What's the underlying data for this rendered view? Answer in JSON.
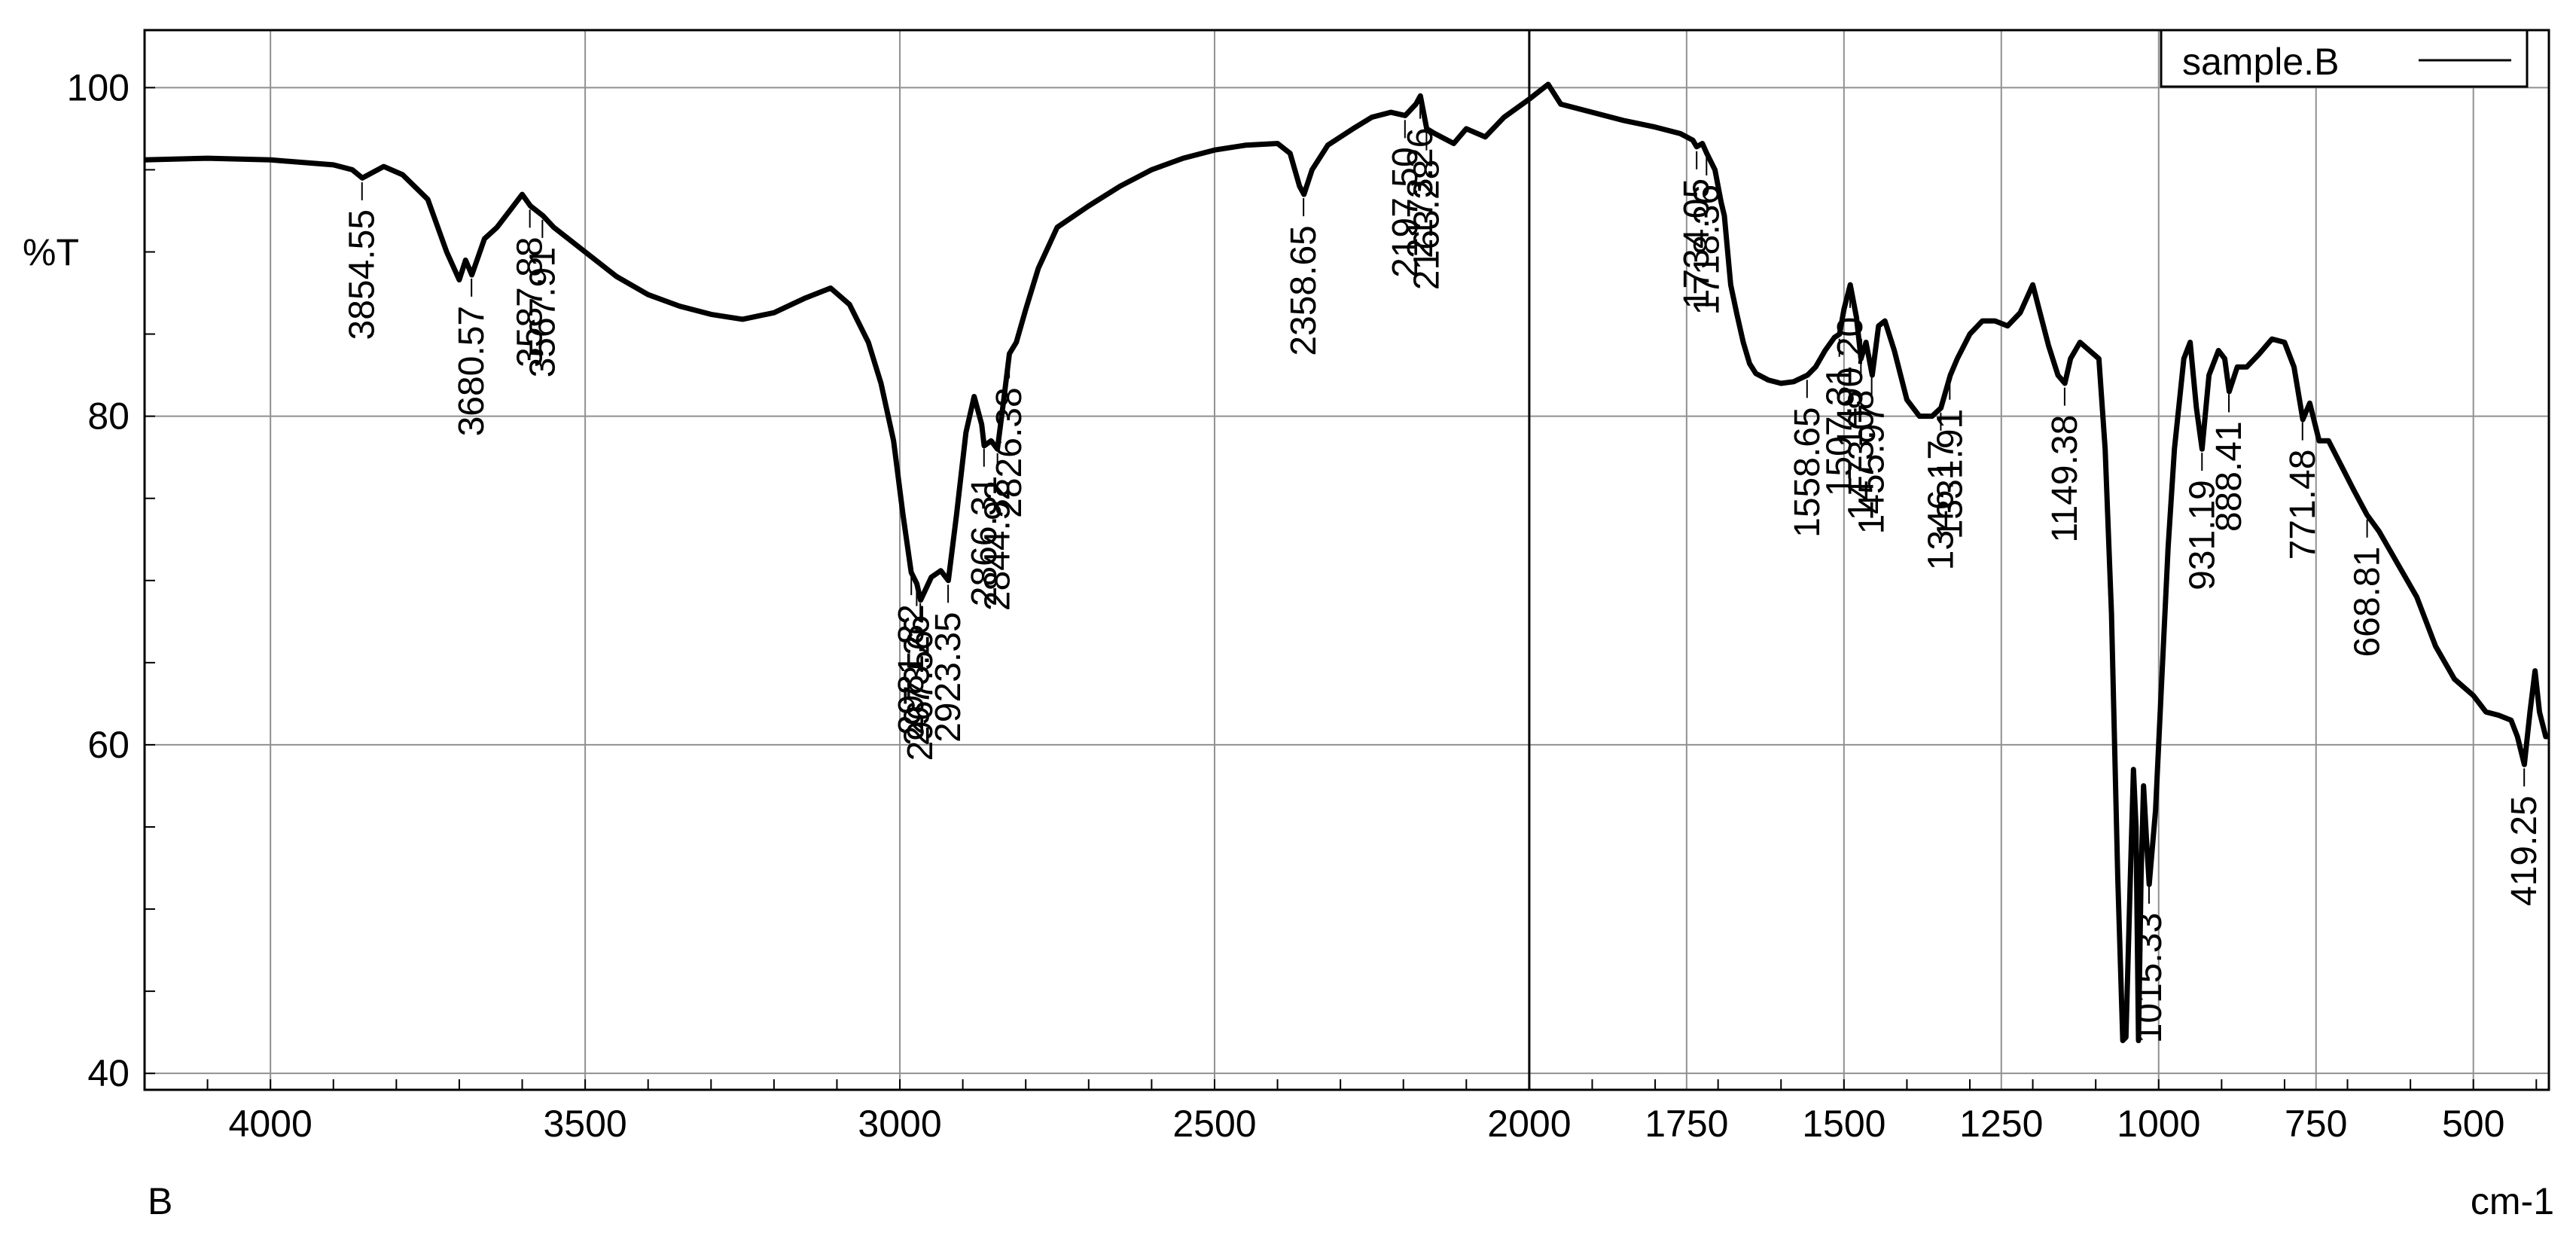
{
  "chart_data": {
    "type": "line",
    "x_direction": "descending",
    "xlim": [
      4200,
      380
    ],
    "ylim": [
      39,
      103.5
    ],
    "grid": true,
    "legend_position": "top-right",
    "x_ticks": [
      4000,
      3500,
      3000,
      2500,
      2000,
      1750,
      1500,
      1250,
      1000,
      750,
      500
    ],
    "x_tick_labels": [
      "4000",
      "3500",
      "3000",
      "2500",
      "2000",
      "1750",
      "1500",
      "1250",
      "1000",
      "750",
      "500"
    ],
    "y_ticks": [
      40,
      60,
      80,
      100
    ],
    "y_tick_labels": [
      "40",
      "60",
      "80",
      "100"
    ],
    "ylabel": "%T",
    "xlabel": "cm-1",
    "corner_label": "B",
    "colors": {
      "line": "#000000",
      "grid": "#909090",
      "axis": "#000000"
    },
    "series": [
      {
        "name": "sample.B",
        "points": [
          [
            4200,
            95.6
          ],
          [
            4100,
            95.7
          ],
          [
            4000,
            95.6
          ],
          [
            3900,
            95.3
          ],
          [
            3870,
            95.0
          ],
          [
            3854,
            94.5
          ],
          [
            3820,
            95.2
          ],
          [
            3790,
            94.7
          ],
          [
            3750,
            93.2
          ],
          [
            3720,
            90.0
          ],
          [
            3700,
            88.3
          ],
          [
            3690,
            89.5
          ],
          [
            3680,
            88.6
          ],
          [
            3660,
            90.8
          ],
          [
            3640,
            91.5
          ],
          [
            3620,
            92.5
          ],
          [
            3600,
            93.5
          ],
          [
            3587,
            92.8
          ],
          [
            3567,
            92.2
          ],
          [
            3550,
            91.5
          ],
          [
            3500,
            90.0
          ],
          [
            3450,
            88.5
          ],
          [
            3400,
            87.4
          ],
          [
            3350,
            86.7
          ],
          [
            3300,
            86.2
          ],
          [
            3250,
            85.9
          ],
          [
            3200,
            86.3
          ],
          [
            3150,
            87.2
          ],
          [
            3110,
            87.8
          ],
          [
            3080,
            86.8
          ],
          [
            3050,
            84.5
          ],
          [
            3030,
            82.0
          ],
          [
            3010,
            78.5
          ],
          [
            2995,
            74.0
          ],
          [
            2982,
            70.5
          ],
          [
            2973,
            69.8
          ],
          [
            2967,
            68.8
          ],
          [
            2950,
            70.2
          ],
          [
            2935,
            70.6
          ],
          [
            2923,
            70.0
          ],
          [
            2910,
            74.0
          ],
          [
            2895,
            79.0
          ],
          [
            2882,
            81.2
          ],
          [
            2870,
            79.5
          ],
          [
            2866,
            78.2
          ],
          [
            2855,
            78.5
          ],
          [
            2845,
            78.0
          ],
          [
            2835,
            81.0
          ],
          [
            2826,
            83.8
          ],
          [
            2815,
            84.5
          ],
          [
            2800,
            86.5
          ],
          [
            2780,
            89.0
          ],
          [
            2750,
            91.5
          ],
          [
            2700,
            92.8
          ],
          [
            2650,
            94.0
          ],
          [
            2600,
            95.0
          ],
          [
            2550,
            95.7
          ],
          [
            2500,
            96.2
          ],
          [
            2450,
            96.5
          ],
          [
            2400,
            96.6
          ],
          [
            2380,
            96.0
          ],
          [
            2365,
            94.0
          ],
          [
            2358,
            93.5
          ],
          [
            2345,
            95.0
          ],
          [
            2320,
            96.5
          ],
          [
            2280,
            97.5
          ],
          [
            2250,
            98.2
          ],
          [
            2220,
            98.5
          ],
          [
            2197,
            98.3
          ],
          [
            2180,
            99.0
          ],
          [
            2173,
            99.5
          ],
          [
            2163,
            97.5
          ],
          [
            2150,
            97.2
          ],
          [
            2120,
            96.6
          ],
          [
            2100,
            97.5
          ],
          [
            2070,
            97.0
          ],
          [
            2040,
            98.2
          ],
          [
            2000,
            99.3
          ],
          [
            1970,
            100.2
          ],
          [
            1950,
            99.0
          ],
          [
            1900,
            98.5
          ],
          [
            1850,
            98.0
          ],
          [
            1800,
            97.6
          ],
          [
            1760,
            97.2
          ],
          [
            1740,
            96.8
          ],
          [
            1734,
            96.4
          ],
          [
            1725,
            96.6
          ],
          [
            1718,
            96.0
          ],
          [
            1705,
            95.0
          ],
          [
            1695,
            93.0
          ],
          [
            1690,
            92.2
          ],
          [
            1680,
            88.0
          ],
          [
            1670,
            86.2
          ],
          [
            1660,
            84.5
          ],
          [
            1650,
            83.2
          ],
          [
            1640,
            82.6
          ],
          [
            1620,
            82.2
          ],
          [
            1600,
            82.0
          ],
          [
            1580,
            82.1
          ],
          [
            1558,
            82.5
          ],
          [
            1545,
            83.0
          ],
          [
            1530,
            84.0
          ],
          [
            1515,
            84.8
          ],
          [
            1507,
            85.0
          ],
          [
            1500,
            86.5
          ],
          [
            1490,
            88.0
          ],
          [
            1480,
            86.0
          ],
          [
            1473,
            83.5
          ],
          [
            1465,
            84.5
          ],
          [
            1455,
            82.5
          ],
          [
            1445,
            85.5
          ],
          [
            1435,
            85.8
          ],
          [
            1420,
            84.0
          ],
          [
            1400,
            81.0
          ],
          [
            1380,
            80.0
          ],
          [
            1360,
            80.0
          ],
          [
            1346,
            80.5
          ],
          [
            1331,
            82.5
          ],
          [
            1320,
            83.5
          ],
          [
            1300,
            85.0
          ],
          [
            1280,
            85.8
          ],
          [
            1260,
            85.8
          ],
          [
            1240,
            85.5
          ],
          [
            1220,
            86.3
          ],
          [
            1200,
            88.0
          ],
          [
            1190,
            86.5
          ],
          [
            1175,
            84.3
          ],
          [
            1160,
            82.5
          ],
          [
            1149,
            82.0
          ],
          [
            1140,
            83.5
          ],
          [
            1125,
            84.5
          ],
          [
            1110,
            84.0
          ],
          [
            1095,
            83.5
          ],
          [
            1085,
            78.0
          ],
          [
            1075,
            68.0
          ],
          [
            1065,
            52.0
          ],
          [
            1057,
            42.0
          ],
          [
            1052,
            42.2
          ],
          [
            1045,
            52.0
          ],
          [
            1040,
            58.5
          ],
          [
            1036,
            55.0
          ],
          [
            1032,
            42.0
          ],
          [
            1028,
            52.0
          ],
          [
            1024,
            57.5
          ],
          [
            1019,
            54.0
          ],
          [
            1015,
            51.5
          ],
          [
            1005,
            56.0
          ],
          [
            995,
            64.0
          ],
          [
            985,
            72.0
          ],
          [
            975,
            78.0
          ],
          [
            960,
            83.5
          ],
          [
            950,
            84.5
          ],
          [
            940,
            80.5
          ],
          [
            931,
            78.0
          ],
          [
            920,
            82.5
          ],
          [
            905,
            84.0
          ],
          [
            895,
            83.5
          ],
          [
            888,
            81.5
          ],
          [
            875,
            83.0
          ],
          [
            860,
            83.0
          ],
          [
            840,
            83.8
          ],
          [
            820,
            84.7
          ],
          [
            800,
            84.5
          ],
          [
            785,
            83.0
          ],
          [
            771,
            79.8
          ],
          [
            760,
            80.8
          ],
          [
            745,
            78.5
          ],
          [
            730,
            78.5
          ],
          [
            710,
            77.0
          ],
          [
            690,
            75.5
          ],
          [
            669,
            74.0
          ],
          [
            650,
            73.0
          ],
          [
            620,
            71.0
          ],
          [
            590,
            69.0
          ],
          [
            560,
            66.0
          ],
          [
            530,
            64.0
          ],
          [
            500,
            63.0
          ],
          [
            480,
            62.0
          ],
          [
            460,
            61.8
          ],
          [
            440,
            61.5
          ],
          [
            430,
            60.5
          ],
          [
            419,
            58.8
          ],
          [
            410,
            62.0
          ],
          [
            402,
            64.5
          ],
          [
            395,
            62.0
          ],
          [
            385,
            60.5
          ],
          [
            380,
            60.5
          ]
        ]
      }
    ],
    "peak_labels": [
      "3854.55",
      "3680.57",
      "3587.88",
      "3567.91",
      "2981.82",
      "2973.26",
      "2967.56",
      "2923.35",
      "2866.31",
      "2844.92",
      "2826.38",
      "2358.65",
      "2197.50",
      "2173.26",
      "2163.28",
      "1734.05",
      "1718.36",
      "1558.65",
      "1507.31",
      "1490.20",
      "1473.08",
      "1455.97",
      "1346.17",
      "1331.91",
      "1149.38",
      "1015.33",
      "931.19",
      "888.41",
      "771.48",
      "668.81",
      "419.25"
    ],
    "peaks": [
      3854.55,
      3680.57,
      3587.88,
      3567.91,
      2981.82,
      2973.26,
      2967.56,
      2923.35,
      2866.31,
      2844.92,
      2826.38,
      2358.65,
      2197.5,
      2173.26,
      2163.28,
      1734.05,
      1718.36,
      1558.65,
      1507.31,
      1490.2,
      1473.08,
      1455.97,
      1346.17,
      1331.91,
      1149.38,
      1015.33,
      931.19,
      888.41,
      771.48,
      668.81,
      419.25
    ]
  }
}
